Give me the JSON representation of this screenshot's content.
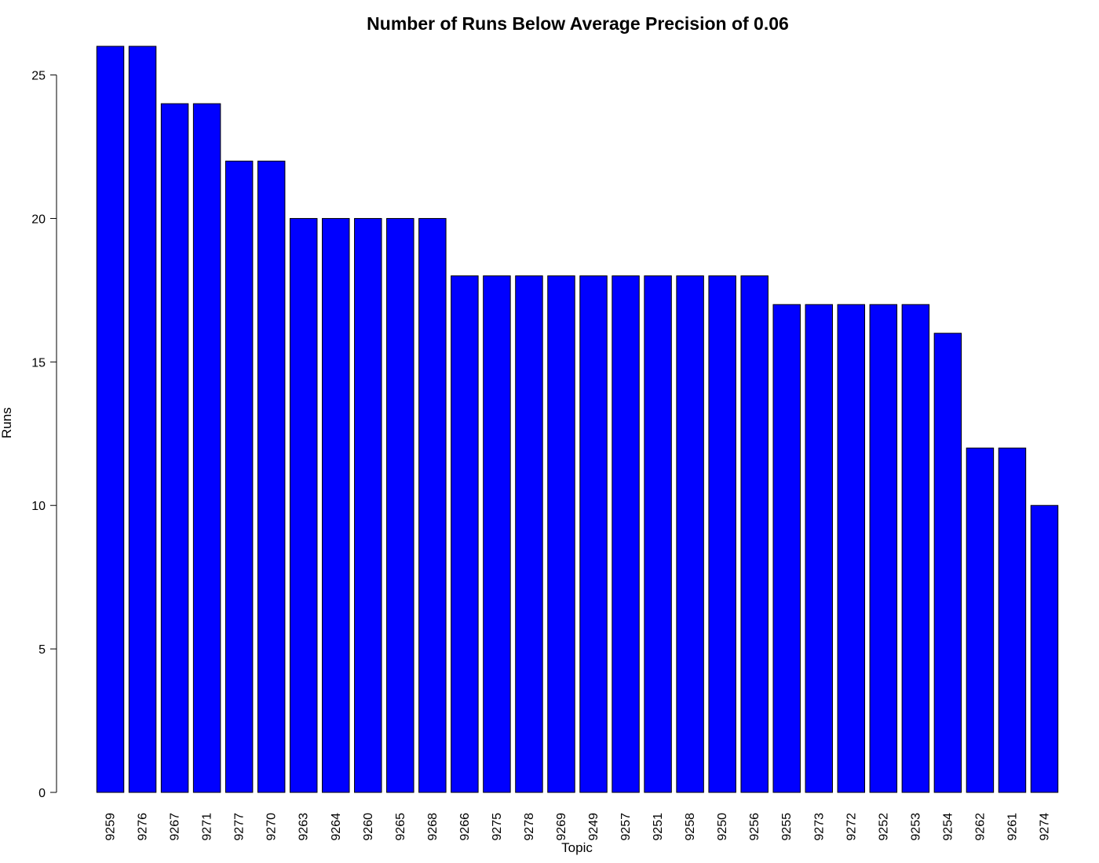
{
  "chart_data": {
    "type": "bar",
    "title": "Number of Runs Below Average Precision of 0.06",
    "xlabel": "Topic",
    "ylabel": "Runs",
    "ylim": [
      0,
      26
    ],
    "yticks": [
      0,
      5,
      10,
      15,
      20,
      25
    ],
    "grid": false,
    "bar_color": "#0000ff",
    "bar_stroke": "#000000",
    "categories": [
      "9259",
      "9276",
      "9267",
      "9271",
      "9277",
      "9270",
      "9263",
      "9264",
      "9260",
      "9265",
      "9268",
      "9266",
      "9275",
      "9278",
      "9269",
      "9249",
      "9257",
      "9251",
      "9258",
      "9250",
      "9256",
      "9255",
      "9273",
      "9272",
      "9252",
      "9253",
      "9254",
      "9262",
      "9261",
      "9274"
    ],
    "values": [
      26,
      26,
      24,
      24,
      22,
      22,
      20,
      20,
      20,
      20,
      20,
      18,
      18,
      18,
      18,
      18,
      18,
      18,
      18,
      18,
      18,
      17,
      17,
      17,
      17,
      17,
      16,
      12,
      12,
      10
    ]
  }
}
